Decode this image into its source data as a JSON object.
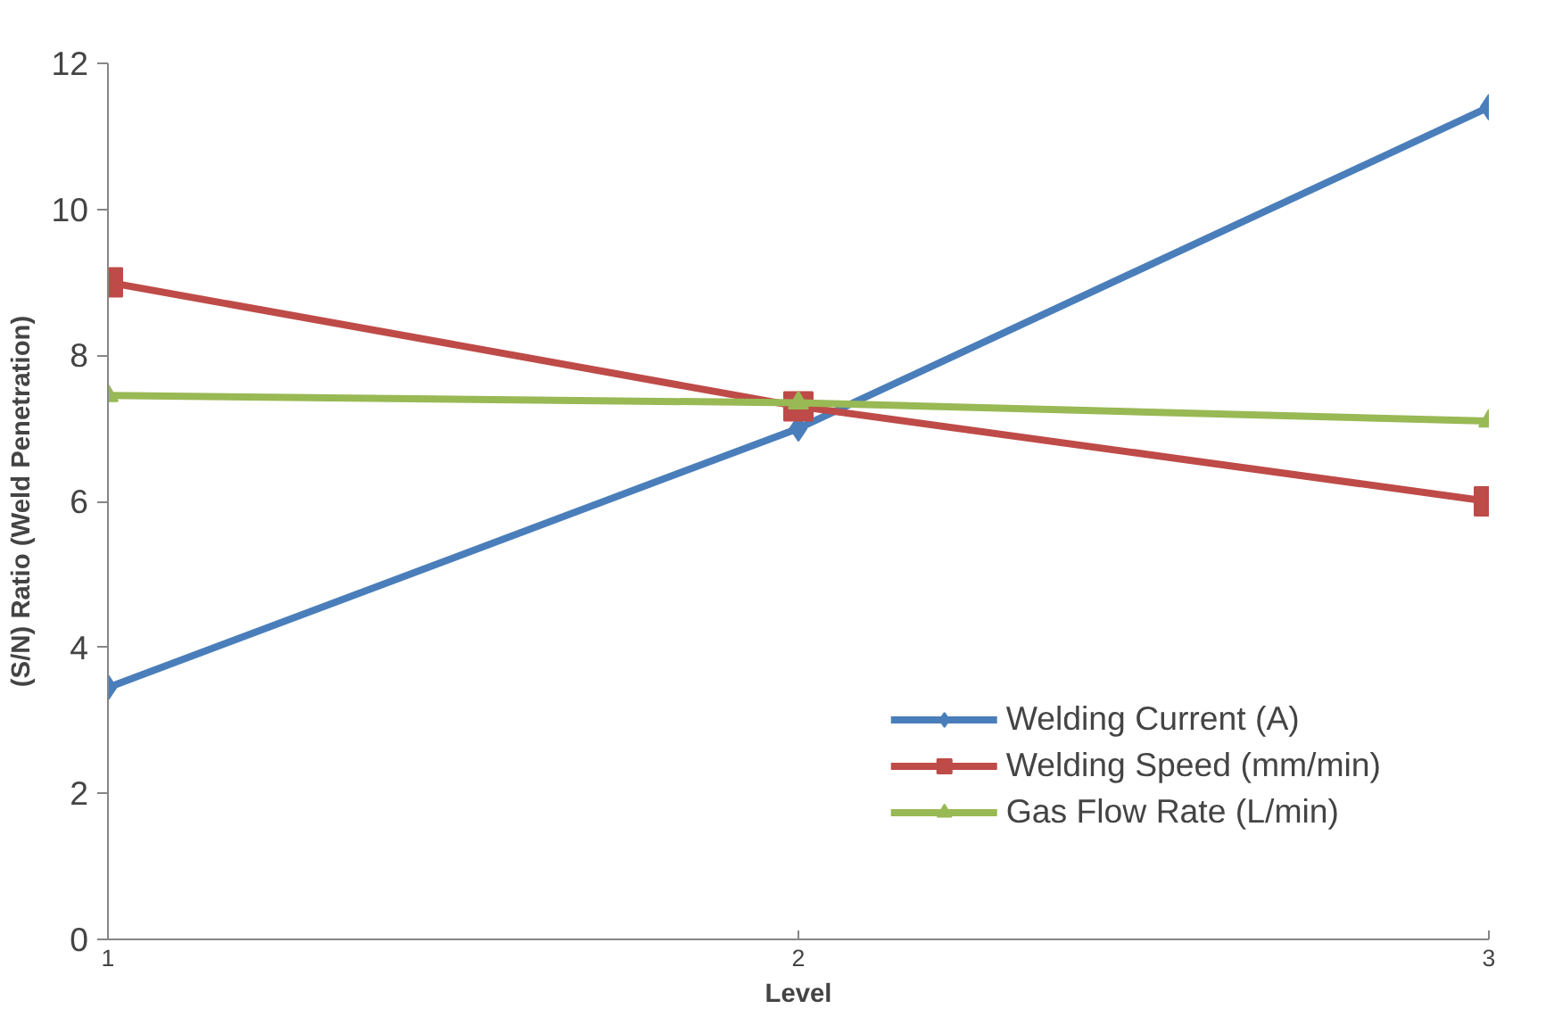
{
  "chart_data": {
    "type": "line",
    "xlabel": "Level",
    "ylabel": "(S/N) Ratio (Weld Penetration)",
    "x": [
      1,
      2,
      3
    ],
    "xlim": [
      1,
      3
    ],
    "xticks": [
      1,
      2,
      3
    ],
    "ylim": [
      0,
      12
    ],
    "yticks": [
      0,
      2,
      4,
      6,
      8,
      10,
      12
    ],
    "grid": false,
    "legend": "bottom right",
    "series": [
      {
        "name": "Welding Current (A)",
        "color": "#4a7ebb",
        "marker": "diamond",
        "values": [
          3.45,
          7.0,
          11.4
        ]
      },
      {
        "name": "Welding Speed (mm/min)",
        "color": "#be4b48",
        "marker": "square",
        "values": [
          9.0,
          7.3,
          6.0
        ]
      },
      {
        "name": "Gas Flow Rate (L/min)",
        "color": "#98b954",
        "marker": "triangle",
        "values": [
          7.45,
          7.35,
          7.1
        ]
      }
    ]
  }
}
